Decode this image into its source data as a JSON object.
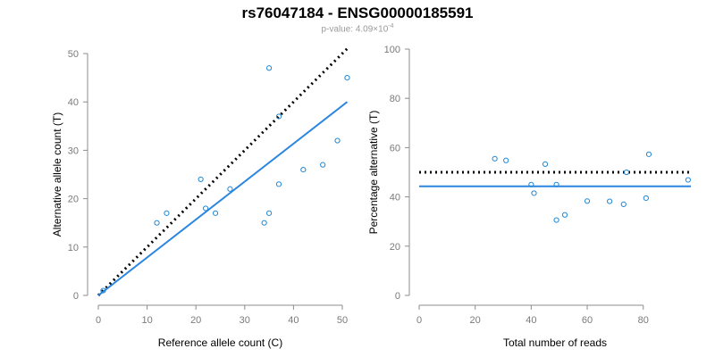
{
  "header": {
    "title": "rs76047184 - ENSG00000185591",
    "subtitle_prefix": "p-value: 4.09×10",
    "subtitle_exp": "-4"
  },
  "colors": {
    "points": "#1f88d6",
    "fit_line": "#2a86e0",
    "reference_line": "#000000",
    "axis": "#8c8c8c"
  },
  "chart_data": [
    {
      "type": "scatter",
      "xlabel": "Reference allele count (C)",
      "ylabel": "Alternative allele count (T)",
      "xlim": [
        0,
        50
      ],
      "ylim": [
        0,
        50
      ],
      "xticks": [
        0,
        10,
        20,
        30,
        40,
        50
      ],
      "yticks": [
        0,
        10,
        20,
        30,
        40,
        50
      ],
      "points": [
        {
          "x": 1,
          "y": 1
        },
        {
          "x": 12,
          "y": 15
        },
        {
          "x": 14,
          "y": 17
        },
        {
          "x": 21,
          "y": 24
        },
        {
          "x": 22,
          "y": 18
        },
        {
          "x": 24,
          "y": 17
        },
        {
          "x": 27,
          "y": 22
        },
        {
          "x": 34,
          "y": 15
        },
        {
          "x": 35,
          "y": 17
        },
        {
          "x": 35,
          "y": 47
        },
        {
          "x": 37,
          "y": 23
        },
        {
          "x": 37,
          "y": 37
        },
        {
          "x": 42,
          "y": 26
        },
        {
          "x": 46,
          "y": 27
        },
        {
          "x": 49,
          "y": 32
        },
        {
          "x": 51,
          "y": 45
        }
      ],
      "reference_line": {
        "style": "dotted",
        "x": [
          0,
          51
        ],
        "y": [
          0,
          51
        ]
      },
      "fit_line": {
        "style": "solid",
        "x": [
          0,
          51
        ],
        "y": [
          0,
          40
        ]
      }
    },
    {
      "type": "scatter",
      "xlabel": "Total number of reads",
      "ylabel": "Percentage alternative (T)",
      "xlim": [
        0,
        97
      ],
      "ylim": [
        0,
        100
      ],
      "xticks": [
        0,
        20,
        40,
        60,
        80
      ],
      "yticks": [
        0,
        20,
        40,
        60,
        80,
        100
      ],
      "points": [
        {
          "x": 27,
          "y": 55.5
        },
        {
          "x": 31,
          "y": 54.8
        },
        {
          "x": 40,
          "y": 45
        },
        {
          "x": 41,
          "y": 41.5
        },
        {
          "x": 45,
          "y": 53.3
        },
        {
          "x": 49,
          "y": 30.6
        },
        {
          "x": 49,
          "y": 45
        },
        {
          "x": 52,
          "y": 32.7
        },
        {
          "x": 60,
          "y": 38.3
        },
        {
          "x": 68,
          "y": 38.2
        },
        {
          "x": 73,
          "y": 37.0
        },
        {
          "x": 74,
          "y": 50
        },
        {
          "x": 81,
          "y": 39.5
        },
        {
          "x": 82,
          "y": 57.3
        },
        {
          "x": 96,
          "y": 46.9
        }
      ],
      "reference_line": {
        "style": "dotted",
        "y": 50
      },
      "fit_line": {
        "style": "solid",
        "y": 44.3
      }
    }
  ]
}
